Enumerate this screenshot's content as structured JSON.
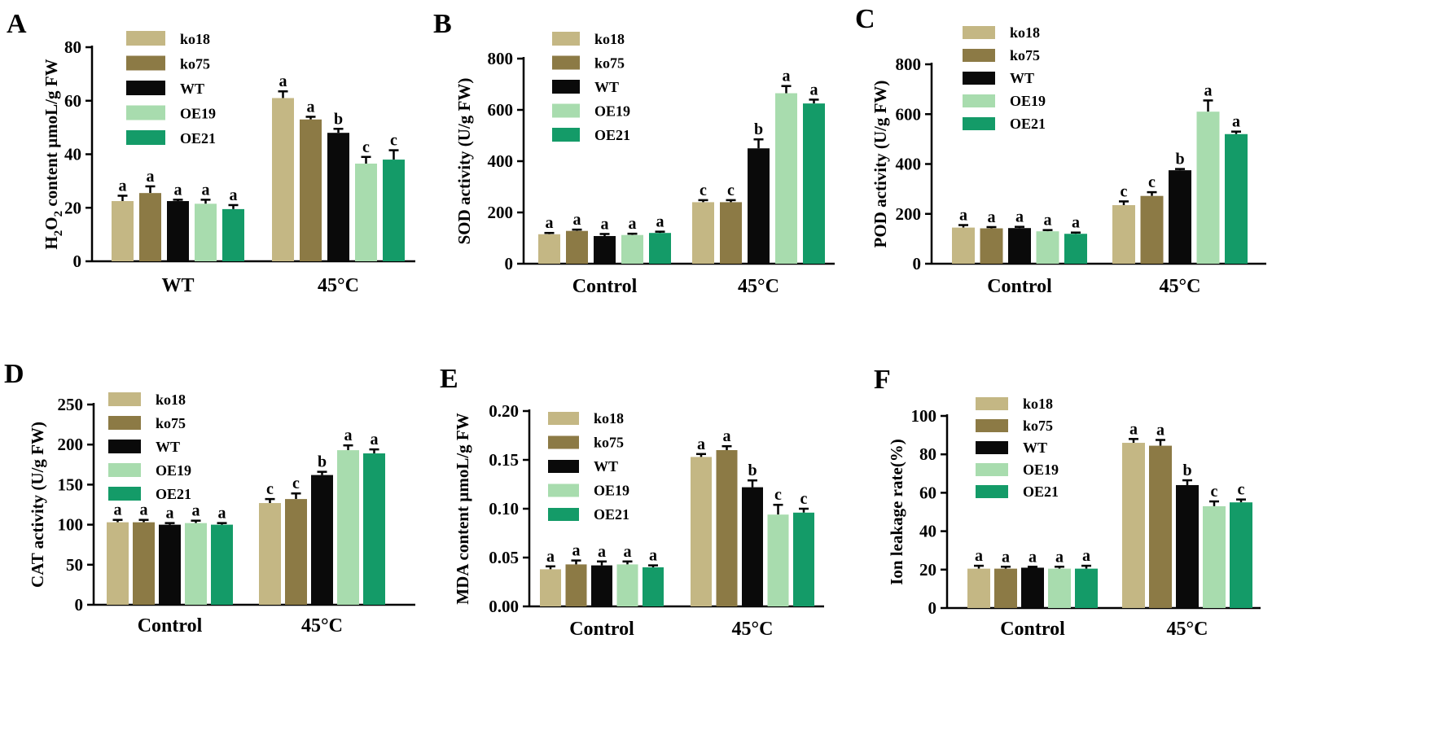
{
  "colors": {
    "ko18": "#c4b784",
    "ko75": "#8c7a45",
    "WT": "#0a0a0a",
    "OE19": "#a8dcae",
    "OE21": "#149b68",
    "axis": "#000000"
  },
  "chart_data": [
    {
      "id": "A",
      "type": "bar",
      "panel_label": "A",
      "ylabel": "H2O2 content µmoL/g FW",
      "ylabel_parts": {
        "pre": "H",
        "sub1": "2",
        "mid": "O",
        "sub2": "2",
        "post": " content µmoL/g FW"
      },
      "ylim": [
        0,
        80
      ],
      "yticks": [
        "0",
        "20",
        "40",
        "60",
        "80"
      ],
      "categories": [
        "WT",
        "45°C"
      ],
      "legend": [
        "ko18",
        "ko75",
        "WT",
        "OE19",
        "OE21"
      ],
      "series": [
        {
          "name": "ko18",
          "values": [
            22.5,
            61
          ],
          "errors": [
            2,
            2.5
          ],
          "sig": [
            "a",
            "a"
          ]
        },
        {
          "name": "ko75",
          "values": [
            25.5,
            53
          ],
          "errors": [
            2.5,
            1
          ],
          "sig": [
            "a",
            "a"
          ]
        },
        {
          "name": "WT",
          "values": [
            22.5,
            48
          ],
          "errors": [
            0.5,
            1.5
          ],
          "sig": [
            "a",
            "b"
          ]
        },
        {
          "name": "OE19",
          "values": [
            21.5,
            36.5
          ],
          "errors": [
            1.5,
            2.5
          ],
          "sig": [
            "a",
            "c"
          ]
        },
        {
          "name": "OE21",
          "values": [
            19.5,
            38
          ],
          "errors": [
            1.5,
            3.5
          ],
          "sig": [
            "a",
            "c"
          ]
        }
      ]
    },
    {
      "id": "B",
      "type": "bar",
      "panel_label": "B",
      "ylabel": "SOD activity (U/g FW)",
      "ylim": [
        0,
        800
      ],
      "yticks": [
        "0",
        "200",
        "400",
        "600",
        "800"
      ],
      "categories": [
        "Control",
        "45°C"
      ],
      "legend": [
        "ko18",
        "ko75",
        "WT",
        "OE19",
        "OE21"
      ],
      "series": [
        {
          "name": "ko18",
          "values": [
            115,
            240
          ],
          "errors": [
            5,
            8
          ],
          "sig": [
            "a",
            "c"
          ]
        },
        {
          "name": "ko75",
          "values": [
            128,
            240
          ],
          "errors": [
            5,
            8
          ],
          "sig": [
            "a",
            "c"
          ]
        },
        {
          "name": "WT",
          "values": [
            108,
            450
          ],
          "errors": [
            8,
            35
          ],
          "sig": [
            "a",
            "b"
          ]
        },
        {
          "name": "OE19",
          "values": [
            112,
            665
          ],
          "errors": [
            5,
            28
          ],
          "sig": [
            "a",
            "a"
          ]
        },
        {
          "name": "OE21",
          "values": [
            120,
            625
          ],
          "errors": [
            5,
            15
          ],
          "sig": [
            "a",
            "a"
          ]
        }
      ]
    },
    {
      "id": "C",
      "type": "bar",
      "panel_label": "C",
      "ylabel": "POD activity (U/g FW)",
      "ylim": [
        0,
        800
      ],
      "yticks": [
        "0",
        "200",
        "400",
        "600",
        "800"
      ],
      "categories": [
        "Control",
        "45°C"
      ],
      "legend": [
        "ko18",
        "ko75",
        "WT",
        "OE19",
        "OE21"
      ],
      "series": [
        {
          "name": "ko18",
          "values": [
            145,
            235
          ],
          "errors": [
            10,
            15
          ],
          "sig": [
            "a",
            "c"
          ]
        },
        {
          "name": "ko75",
          "values": [
            142,
            272
          ],
          "errors": [
            5,
            15
          ],
          "sig": [
            "a",
            "c"
          ]
        },
        {
          "name": "WT",
          "values": [
            143,
            375
          ],
          "errors": [
            5,
            5
          ],
          "sig": [
            "a",
            "b"
          ]
        },
        {
          "name": "OE19",
          "values": [
            130,
            610
          ],
          "errors": [
            5,
            45
          ],
          "sig": [
            "a",
            "a"
          ]
        },
        {
          "name": "OE21",
          "values": [
            120,
            520
          ],
          "errors": [
            5,
            10
          ],
          "sig": [
            "a",
            "a"
          ]
        }
      ]
    },
    {
      "id": "D",
      "type": "bar",
      "panel_label": "D",
      "ylabel": "CAT activity (U/g FW)",
      "ylim": [
        0,
        250
      ],
      "yticks": [
        "0",
        "50",
        "100",
        "150",
        "200",
        "250"
      ],
      "categories": [
        "Control",
        "45°C"
      ],
      "legend": [
        "ko18",
        "ko75",
        "WT",
        "OE19",
        "OE21"
      ],
      "series": [
        {
          "name": "ko18",
          "values": [
            103,
            127
          ],
          "errors": [
            3,
            5
          ],
          "sig": [
            "a",
            "c"
          ]
        },
        {
          "name": "ko75",
          "values": [
            103,
            132
          ],
          "errors": [
            3,
            7
          ],
          "sig": [
            "a",
            "c"
          ]
        },
        {
          "name": "WT",
          "values": [
            100,
            162
          ],
          "errors": [
            2,
            4
          ],
          "sig": [
            "a",
            "b"
          ]
        },
        {
          "name": "OE19",
          "values": [
            102,
            193
          ],
          "errors": [
            3,
            6
          ],
          "sig": [
            "a",
            "a"
          ]
        },
        {
          "name": "OE21",
          "values": [
            100,
            189
          ],
          "errors": [
            2,
            5
          ],
          "sig": [
            "a",
            "a"
          ]
        }
      ]
    },
    {
      "id": "E",
      "type": "bar",
      "panel_label": "E",
      "ylabel": "MDA content µmoL/g FW",
      "ylim": [
        0,
        0.2
      ],
      "yticks": [
        "0.00",
        "0.05",
        "0.10",
        "0.15",
        "0.20"
      ],
      "categories": [
        "Control",
        "45°C"
      ],
      "legend": [
        "ko18",
        "ko75",
        "WT",
        "OE19",
        "OE21"
      ],
      "series": [
        {
          "name": "ko18",
          "values": [
            0.038,
            0.153
          ],
          "errors": [
            0.003,
            0.003
          ],
          "sig": [
            "a",
            "a"
          ]
        },
        {
          "name": "ko75",
          "values": [
            0.043,
            0.16
          ],
          "errors": [
            0.004,
            0.004
          ],
          "sig": [
            "a",
            "a"
          ]
        },
        {
          "name": "WT",
          "values": [
            0.042,
            0.122
          ],
          "errors": [
            0.004,
            0.007
          ],
          "sig": [
            "a",
            "b"
          ]
        },
        {
          "name": "OE19",
          "values": [
            0.043,
            0.094
          ],
          "errors": [
            0.003,
            0.01
          ],
          "sig": [
            "a",
            "c"
          ]
        },
        {
          "name": "OE21",
          "values": [
            0.04,
            0.096
          ],
          "errors": [
            0.002,
            0.004
          ],
          "sig": [
            "a",
            "c"
          ]
        }
      ]
    },
    {
      "id": "F",
      "type": "bar",
      "panel_label": "F",
      "ylabel": "Ion leakage rate(%)",
      "ylim": [
        0,
        100
      ],
      "yticks": [
        "0",
        "20",
        "40",
        "60",
        "80",
        "100"
      ],
      "categories": [
        "Control",
        "45°C"
      ],
      "legend": [
        "ko18",
        "ko75",
        "WT",
        "OE19",
        "OE21"
      ],
      "series": [
        {
          "name": "ko18",
          "values": [
            20.5,
            86
          ],
          "errors": [
            1.5,
            2
          ],
          "sig": [
            "a",
            "a"
          ]
        },
        {
          "name": "ko75",
          "values": [
            20.5,
            84.5
          ],
          "errors": [
            1,
            3
          ],
          "sig": [
            "a",
            "a"
          ]
        },
        {
          "name": "WT",
          "values": [
            21,
            64
          ],
          "errors": [
            0.5,
            2.5
          ],
          "sig": [
            "a",
            "b"
          ]
        },
        {
          "name": "OE19",
          "values": [
            20.5,
            53
          ],
          "errors": [
            1,
            2.5
          ],
          "sig": [
            "a",
            "c"
          ]
        },
        {
          "name": "OE21",
          "values": [
            20.5,
            55
          ],
          "errors": [
            1.5,
            1.5
          ],
          "sig": [
            "a",
            "c"
          ]
        }
      ]
    }
  ]
}
